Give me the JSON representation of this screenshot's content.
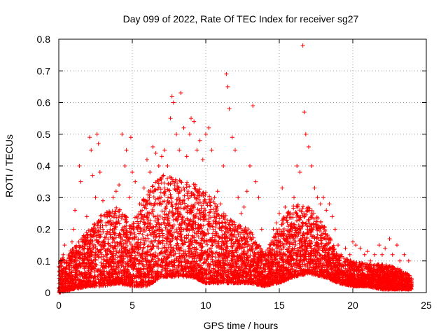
{
  "chart_data": {
    "type": "scatter",
    "title": "Day 099 of 2022, Rate Of TEC Index for receiver sg27",
    "xlabel": "GPS time / hours",
    "ylabel": "ROTI / TECUs",
    "xlim": [
      0,
      25
    ],
    "ylim": [
      0,
      0.8
    ],
    "xticks": [
      0,
      5,
      10,
      15,
      20,
      25
    ],
    "yticks": [
      0,
      0.1,
      0.2,
      0.3,
      0.4,
      0.5,
      0.6,
      0.7,
      0.8
    ],
    "xtick_labels": [
      "0",
      "5",
      "10",
      "15",
      "20",
      "25"
    ],
    "ytick_labels": [
      "0",
      "0.1",
      "0.2",
      "0.3",
      "0.4",
      "0.5",
      "0.6",
      "0.7",
      "0.8"
    ],
    "grid": true,
    "marker": "+",
    "color": "#ff0000",
    "series": [
      {
        "name": "ROTI",
        "points": [
          [
            0.1,
            0.02
          ],
          [
            0.2,
            0.05
          ],
          [
            0.3,
            0.12
          ],
          [
            0.4,
            0.15
          ],
          [
            0.5,
            0.08
          ],
          [
            0.7,
            0.1
          ],
          [
            0.9,
            0.16
          ],
          [
            1.0,
            0.2
          ],
          [
            1.1,
            0.26
          ],
          [
            1.3,
            0.12
          ],
          [
            1.4,
            0.4
          ],
          [
            1.5,
            0.35
          ],
          [
            1.7,
            0.18
          ],
          [
            1.9,
            0.24
          ],
          [
            2.1,
            0.49
          ],
          [
            2.2,
            0.45
          ],
          [
            2.3,
            0.37
          ],
          [
            2.5,
            0.3
          ],
          [
            2.6,
            0.5
          ],
          [
            2.7,
            0.47
          ],
          [
            2.8,
            0.38
          ],
          [
            3.0,
            0.29
          ],
          [
            3.2,
            0.22
          ],
          [
            3.5,
            0.25
          ],
          [
            3.7,
            0.3
          ],
          [
            3.9,
            0.32
          ],
          [
            4.1,
            0.34
          ],
          [
            4.3,
            0.5
          ],
          [
            4.5,
            0.4
          ],
          [
            4.6,
            0.45
          ],
          [
            4.8,
            0.3
          ],
          [
            4.9,
            0.49
          ],
          [
            5.0,
            0.38
          ],
          [
            5.2,
            0.35
          ],
          [
            5.5,
            0.28
          ],
          [
            5.8,
            0.33
          ],
          [
            6.0,
            0.42
          ],
          [
            6.2,
            0.38
          ],
          [
            6.4,
            0.46
          ],
          [
            6.6,
            0.44
          ],
          [
            6.8,
            0.4
          ],
          [
            7.0,
            0.43
          ],
          [
            7.2,
            0.45
          ],
          [
            7.4,
            0.4
          ],
          [
            7.6,
            0.55
          ],
          [
            7.7,
            0.62
          ],
          [
            7.8,
            0.6
          ],
          [
            8.0,
            0.5
          ],
          [
            8.2,
            0.45
          ],
          [
            8.3,
            0.63
          ],
          [
            8.5,
            0.52
          ],
          [
            8.7,
            0.43
          ],
          [
            8.9,
            0.5
          ],
          [
            9.0,
            0.55
          ],
          [
            9.2,
            0.54
          ],
          [
            9.4,
            0.45
          ],
          [
            9.6,
            0.48
          ],
          [
            9.8,
            0.42
          ],
          [
            10.0,
            0.5
          ],
          [
            10.2,
            0.52
          ],
          [
            10.4,
            0.45
          ],
          [
            10.6,
            0.3
          ],
          [
            10.8,
            0.32
          ],
          [
            11.0,
            0.28
          ],
          [
            11.2,
            0.4
          ],
          [
            11.4,
            0.69
          ],
          [
            11.5,
            0.65
          ],
          [
            11.6,
            0.58
          ],
          [
            11.8,
            0.49
          ],
          [
            12.0,
            0.45
          ],
          [
            12.2,
            0.3
          ],
          [
            12.4,
            0.25
          ],
          [
            12.6,
            0.27
          ],
          [
            12.8,
            0.32
          ],
          [
            13.0,
            0.4
          ],
          [
            13.2,
            0.59
          ],
          [
            13.4,
            0.35
          ],
          [
            13.6,
            0.3
          ],
          [
            13.8,
            0.2
          ],
          [
            14.0,
            0.12
          ],
          [
            14.2,
            0.1
          ],
          [
            14.4,
            0.15
          ],
          [
            14.6,
            0.2
          ],
          [
            14.8,
            0.22
          ],
          [
            15.0,
            0.25
          ],
          [
            15.2,
            0.33
          ],
          [
            15.4,
            0.27
          ],
          [
            15.6,
            0.25
          ],
          [
            15.8,
            0.2
          ],
          [
            16.0,
            0.3
          ],
          [
            16.2,
            0.4
          ],
          [
            16.4,
            0.38
          ],
          [
            16.6,
            0.78
          ],
          [
            16.7,
            0.57
          ],
          [
            16.8,
            0.5
          ],
          [
            17.0,
            0.46
          ],
          [
            17.2,
            0.4
          ],
          [
            17.4,
            0.33
          ],
          [
            17.6,
            0.3
          ],
          [
            17.8,
            0.28
          ],
          [
            18.0,
            0.3
          ],
          [
            18.2,
            0.26
          ],
          [
            18.4,
            0.28
          ],
          [
            18.6,
            0.24
          ],
          [
            18.8,
            0.2
          ],
          [
            19.0,
            0.15
          ],
          [
            19.2,
            0.12
          ],
          [
            19.5,
            0.14
          ],
          [
            19.8,
            0.12
          ],
          [
            20.0,
            0.16
          ],
          [
            20.2,
            0.15
          ],
          [
            20.5,
            0.14
          ],
          [
            20.8,
            0.12
          ],
          [
            21.0,
            0.13
          ],
          [
            21.2,
            0.1
          ],
          [
            21.5,
            0.12
          ],
          [
            21.8,
            0.15
          ],
          [
            22.0,
            0.12
          ],
          [
            22.2,
            0.14
          ],
          [
            22.5,
            0.17
          ],
          [
            22.7,
            0.12
          ],
          [
            23.0,
            0.15
          ],
          [
            23.2,
            0.1
          ],
          [
            23.5,
            0.12
          ],
          [
            23.8,
            0.1
          ],
          [
            24.0,
            0.04
          ]
        ]
      }
    ],
    "band": {
      "description_hours": [
        0,
        24
      ],
      "hours": [
        0,
        1,
        2,
        3,
        4,
        5,
        6,
        7,
        8,
        9,
        10,
        11,
        12,
        13,
        14,
        15,
        16,
        17,
        18,
        19,
        20,
        21,
        22,
        23,
        24
      ],
      "upper": [
        0.1,
        0.14,
        0.2,
        0.25,
        0.27,
        0.22,
        0.32,
        0.38,
        0.36,
        0.35,
        0.32,
        0.26,
        0.22,
        0.2,
        0.12,
        0.22,
        0.28,
        0.27,
        0.22,
        0.12,
        0.1,
        0.09,
        0.09,
        0.08,
        0.05
      ],
      "lower": [
        0,
        0.01,
        0.02,
        0.02,
        0.03,
        0.02,
        0.02,
        0.05,
        0.05,
        0.05,
        0.03,
        0.03,
        0.03,
        0.03,
        0.02,
        0.03,
        0.05,
        0.06,
        0.05,
        0.03,
        0.02,
        0.02,
        0.01,
        0.01,
        0.01
      ]
    }
  }
}
